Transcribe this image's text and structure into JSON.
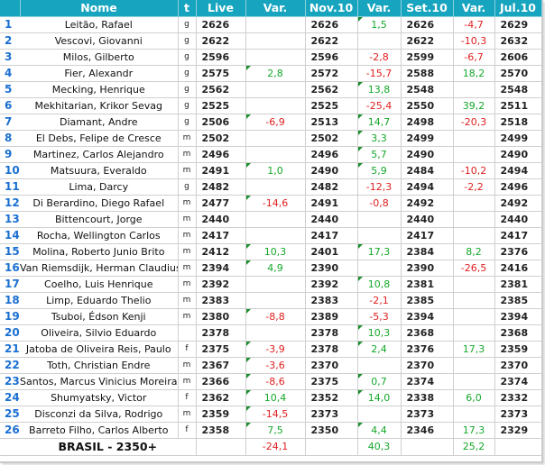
{
  "headers": {
    "name": "Nome",
    "title": "t",
    "live": "Live",
    "var_live": "Var.",
    "nov": "Nov.10",
    "var_nov": "Var.",
    "set": "Set.10",
    "var_set": "Var.",
    "jul": "Jul.10"
  },
  "rows": [
    {
      "rank": "1",
      "name": "Leitão, Rafael",
      "title": "g",
      "live": "2626",
      "var_live": "",
      "nov": "2626",
      "var_nov": "1,5",
      "set": "2626",
      "var_set": "-4,7",
      "jul": "2629"
    },
    {
      "rank": "2",
      "name": "Vescovi, Giovanni",
      "title": "g",
      "live": "2622",
      "var_live": "",
      "nov": "2622",
      "var_nov": "",
      "set": "2622",
      "var_set": "-10,3",
      "jul": "2632"
    },
    {
      "rank": "3",
      "name": "Milos, Gilberto",
      "title": "g",
      "live": "2596",
      "var_live": "",
      "nov": "2596",
      "var_nov": "-2,8",
      "set": "2599",
      "var_set": "-6,7",
      "jul": "2606"
    },
    {
      "rank": "4",
      "name": "Fier, Alexandr",
      "title": "g",
      "live": "2575",
      "var_live": "2,8",
      "nov": "2572",
      "var_nov": "-15,7",
      "set": "2588",
      "var_set": "18,2",
      "jul": "2570"
    },
    {
      "rank": "5",
      "name": "Mecking, Henrique",
      "title": "g",
      "live": "2562",
      "var_live": "",
      "nov": "2562",
      "var_nov": "13,8",
      "set": "2548",
      "var_set": "",
      "jul": "2548"
    },
    {
      "rank": "6",
      "name": "Mekhitarian, Krikor Sevag",
      "title": "g",
      "live": "2525",
      "var_live": "",
      "nov": "2525",
      "var_nov": "-25,4",
      "set": "2550",
      "var_set": "39,2",
      "jul": "2511"
    },
    {
      "rank": "7",
      "name": "Diamant, Andre",
      "title": "g",
      "live": "2506",
      "var_live": "-6,9",
      "nov": "2513",
      "var_nov": "14,7",
      "set": "2498",
      "var_set": "-20,3",
      "jul": "2518"
    },
    {
      "rank": "8",
      "name": "El Debs, Felipe de Cresce",
      "title": "m",
      "live": "2502",
      "var_live": "",
      "nov": "2502",
      "var_nov": "3,3",
      "set": "2499",
      "var_set": "",
      "jul": "2499"
    },
    {
      "rank": "9",
      "name": "Martinez, Carlos Alejandro",
      "title": "m",
      "live": "2496",
      "var_live": "",
      "nov": "2496",
      "var_nov": "5,7",
      "set": "2490",
      "var_set": "",
      "jul": "2490"
    },
    {
      "rank": "10",
      "name": "Matsuura, Everaldo",
      "title": "m",
      "live": "2491",
      "var_live": "1,0",
      "nov": "2490",
      "var_nov": "5,9",
      "set": "2484",
      "var_set": "-10,2",
      "jul": "2494"
    },
    {
      "rank": "11",
      "name": "Lima, Darcy",
      "title": "g",
      "live": "2482",
      "var_live": "",
      "nov": "2482",
      "var_nov": "-12,3",
      "set": "2494",
      "var_set": "-2,2",
      "jul": "2496"
    },
    {
      "rank": "12",
      "name": "Di Berardino, Diego Rafael",
      "title": "m",
      "live": "2477",
      "var_live": "-14,6",
      "nov": "2491",
      "var_nov": "-0,8",
      "set": "2492",
      "var_set": "",
      "jul": "2492"
    },
    {
      "rank": "13",
      "name": "Bittencourt, Jorge",
      "title": "m",
      "live": "2440",
      "var_live": "",
      "nov": "2440",
      "var_nov": "",
      "set": "2440",
      "var_set": "",
      "jul": "2440"
    },
    {
      "rank": "14",
      "name": "Rocha, Wellington Carlos",
      "title": "m",
      "live": "2417",
      "var_live": "",
      "nov": "2417",
      "var_nov": "",
      "set": "2417",
      "var_set": "",
      "jul": "2417"
    },
    {
      "rank": "15",
      "name": "Molina, Roberto Junio Brito",
      "title": "m",
      "live": "2412",
      "var_live": "10,3",
      "nov": "2401",
      "var_nov": "17,3",
      "set": "2384",
      "var_set": "8,2",
      "jul": "2376"
    },
    {
      "rank": "16",
      "name": "Van Riemsdijk, Herman Claudius",
      "title": "m",
      "live": "2394",
      "var_live": "4,9",
      "nov": "2390",
      "var_nov": "",
      "set": "2390",
      "var_set": "-26,5",
      "jul": "2416"
    },
    {
      "rank": "17",
      "name": "Coelho, Luis Henrique",
      "title": "m",
      "live": "2392",
      "var_live": "",
      "nov": "2392",
      "var_nov": "10,8",
      "set": "2381",
      "var_set": "",
      "jul": "2381"
    },
    {
      "rank": "18",
      "name": "Limp, Eduardo Thelio",
      "title": "m",
      "live": "2383",
      "var_live": "",
      "nov": "2383",
      "var_nov": "-2,1",
      "set": "2385",
      "var_set": "",
      "jul": "2385"
    },
    {
      "rank": "19",
      "name": "Tsuboi, Édson Kenji",
      "title": "m",
      "live": "2380",
      "var_live": "-8,8",
      "nov": "2389",
      "var_nov": "-5,3",
      "set": "2394",
      "var_set": "",
      "jul": "2394"
    },
    {
      "rank": "20",
      "name": "Oliveira, Silvio Eduardo",
      "title": "",
      "live": "2378",
      "var_live": "",
      "nov": "2378",
      "var_nov": "10,3",
      "set": "2368",
      "var_set": "",
      "jul": "2368"
    },
    {
      "rank": "21",
      "name": "Jatoba de Oliveira Reis, Paulo",
      "title": "f",
      "live": "2375",
      "var_live": "-3,9",
      "nov": "2378",
      "var_nov": "2,4",
      "set": "2376",
      "var_set": "17,3",
      "jul": "2359"
    },
    {
      "rank": "22",
      "name": "Toth, Christian Endre",
      "title": "m",
      "live": "2367",
      "var_live": "-3,6",
      "nov": "2370",
      "var_nov": "",
      "set": "2370",
      "var_set": "",
      "jul": "2370"
    },
    {
      "rank": "23",
      "name": "Santos, Marcus Vinicius Moreira",
      "title": "m",
      "live": "2366",
      "var_live": "-8,6",
      "nov": "2375",
      "var_nov": "0,7",
      "set": "2374",
      "var_set": "",
      "jul": "2374"
    },
    {
      "rank": "24",
      "name": "Shumyatsky, Victor",
      "title": "f",
      "live": "2362",
      "var_live": "10,4",
      "nov": "2352",
      "var_nov": "14,0",
      "set": "2338",
      "var_set": "6,0",
      "jul": "2332"
    },
    {
      "rank": "25",
      "name": "Disconzi da Silva, Rodrigo",
      "title": "m",
      "live": "2359",
      "var_live": "-14,5",
      "nov": "2373",
      "var_nov": "",
      "set": "2373",
      "var_set": "",
      "jul": "2373"
    },
    {
      "rank": "26",
      "name": "Barreto Filho, Carlos Alberto",
      "title": "f",
      "live": "2358",
      "var_live": "7,5",
      "nov": "2350",
      "var_nov": "4,4",
      "set": "2346",
      "var_set": "17,3",
      "jul": "2329"
    }
  ],
  "footer": {
    "label": "BRASIL - 2350+",
    "var_live": "-24,1",
    "var_nov": "40,3",
    "var_set": "25,2"
  },
  "colors": {
    "header_bg": "#17a4bf",
    "rank_text": "#1a6fd1",
    "positive": "#15a82a",
    "negative": "#e02020"
  }
}
